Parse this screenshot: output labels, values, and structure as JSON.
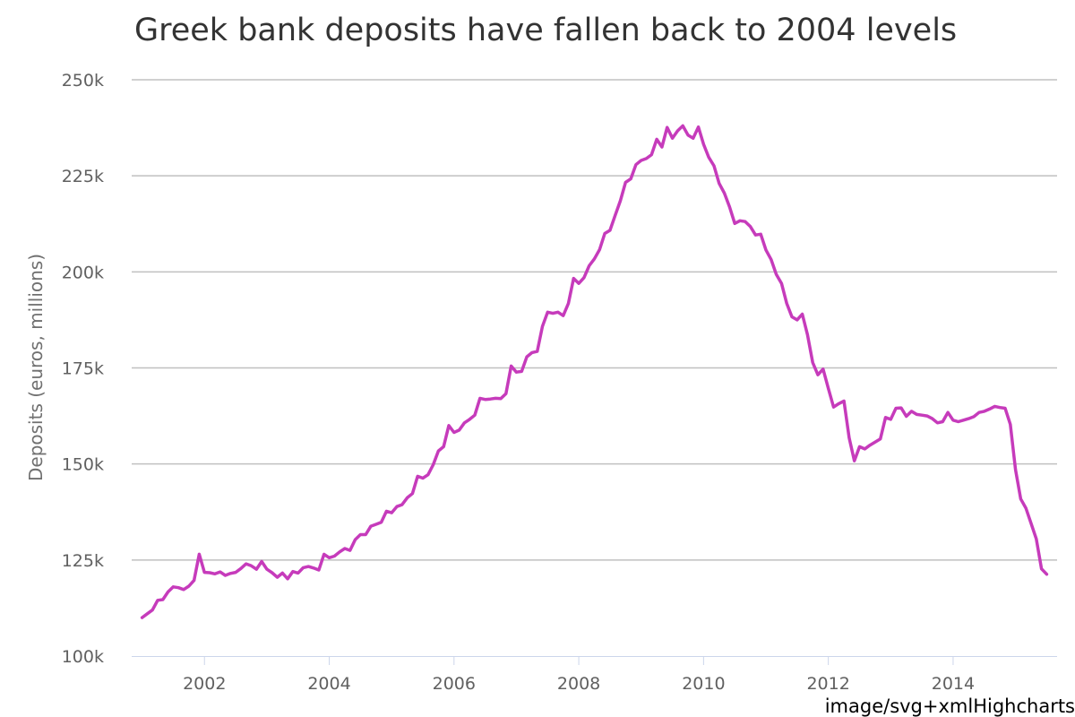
{
  "chart_data": {
    "type": "line",
    "title": "Greek bank deposits have fallen back to 2004 levels",
    "xlabel": "",
    "ylabel": "Deposits (euros, millions)",
    "x_ticks": [
      "2002",
      "2004",
      "2006",
      "2008",
      "2010",
      "2012",
      "2014"
    ],
    "y_ticks": [
      "100k",
      "125k",
      "150k",
      "175k",
      "200k",
      "225k",
      "250k"
    ],
    "ylim": [
      100000,
      250000
    ],
    "xlim": [
      "2000-11",
      "2015-09"
    ],
    "grid": true,
    "legend": "none",
    "series": [
      {
        "color": "#c63bbb",
        "x": [
          "2001-01",
          "2001-02",
          "2001-03",
          "2001-04",
          "2001-05",
          "2001-06",
          "2001-07",
          "2001-08",
          "2001-09",
          "2001-10",
          "2001-11",
          "2001-12",
          "2002-01",
          "2002-02",
          "2002-03",
          "2002-04",
          "2002-05",
          "2002-06",
          "2002-07",
          "2002-08",
          "2002-09",
          "2002-10",
          "2002-11",
          "2002-12",
          "2003-01",
          "2003-02",
          "2003-03",
          "2003-04",
          "2003-05",
          "2003-06",
          "2003-07",
          "2003-08",
          "2003-09",
          "2003-10",
          "2003-11",
          "2003-12",
          "2004-01",
          "2004-02",
          "2004-03",
          "2004-04",
          "2004-05",
          "2004-06",
          "2004-07",
          "2004-08",
          "2004-09",
          "2004-10",
          "2004-11",
          "2004-12",
          "2005-01",
          "2005-02",
          "2005-03",
          "2005-04",
          "2005-05",
          "2005-06",
          "2005-07",
          "2005-08",
          "2005-09",
          "2005-10",
          "2005-11",
          "2005-12",
          "2006-01",
          "2006-02",
          "2006-03",
          "2006-04",
          "2006-05",
          "2006-06",
          "2006-07",
          "2006-08",
          "2006-09",
          "2006-10",
          "2006-11",
          "2006-12",
          "2007-01",
          "2007-02",
          "2007-03",
          "2007-04",
          "2007-05",
          "2007-06",
          "2007-07",
          "2007-08",
          "2007-09",
          "2007-10",
          "2007-11",
          "2007-12",
          "2008-01",
          "2008-02",
          "2008-03",
          "2008-04",
          "2008-05",
          "2008-06",
          "2008-07",
          "2008-08",
          "2008-09",
          "2008-10",
          "2008-11",
          "2008-12",
          "2009-01",
          "2009-02",
          "2009-03",
          "2009-04",
          "2009-05",
          "2009-06",
          "2009-07",
          "2009-08",
          "2009-09",
          "2009-10",
          "2009-11",
          "2009-12",
          "2010-01",
          "2010-02",
          "2010-03",
          "2010-04",
          "2010-05",
          "2010-06",
          "2010-07",
          "2010-08",
          "2010-09",
          "2010-10",
          "2010-11",
          "2010-12",
          "2011-01",
          "2011-02",
          "2011-03",
          "2011-04",
          "2011-05",
          "2011-06",
          "2011-07",
          "2011-08",
          "2011-09",
          "2011-10",
          "2011-11",
          "2011-12",
          "2012-01",
          "2012-02",
          "2012-03",
          "2012-04",
          "2012-05",
          "2012-06",
          "2012-07",
          "2012-08",
          "2012-09",
          "2012-10",
          "2012-11",
          "2012-12",
          "2013-01",
          "2013-02",
          "2013-03",
          "2013-04",
          "2013-05",
          "2013-06",
          "2013-07",
          "2013-08",
          "2013-09",
          "2013-10",
          "2013-11",
          "2013-12",
          "2014-01",
          "2014-02",
          "2014-03",
          "2014-04",
          "2014-05",
          "2014-06",
          "2014-07",
          "2014-08",
          "2014-09",
          "2014-10",
          "2014-11",
          "2014-12",
          "2015-01",
          "2015-02",
          "2015-03",
          "2015-04",
          "2015-05",
          "2015-06",
          "2015-07"
        ],
        "values": [
          110000,
          111000,
          112000,
          114500,
          114700,
          116700,
          118000,
          117800,
          117300,
          118200,
          119700,
          126500,
          121800,
          121700,
          121400,
          121900,
          121000,
          121500,
          121800,
          122800,
          124000,
          123500,
          122600,
          124600,
          122600,
          121700,
          120500,
          121600,
          120100,
          122000,
          121600,
          123000,
          123300,
          122900,
          122400,
          126500,
          125600,
          126000,
          127100,
          128000,
          127500,
          130300,
          131600,
          131600,
          133800,
          134300,
          134800,
          137700,
          137300,
          138900,
          139400,
          141200,
          142300,
          146800,
          146300,
          147200,
          149800,
          153400,
          154500,
          160000,
          158200,
          158800,
          160700,
          161600,
          162700,
          167100,
          166800,
          166900,
          167100,
          167000,
          168300,
          175500,
          173900,
          174100,
          177900,
          179000,
          179300,
          185800,
          189500,
          189200,
          189500,
          188600,
          191800,
          198300,
          197000,
          198500,
          201600,
          203400,
          205800,
          210000,
          210800,
          214700,
          218500,
          223300,
          224200,
          227900,
          229000,
          229500,
          230500,
          234500,
          232500,
          237600,
          234800,
          236700,
          238000,
          235600,
          234800,
          237700,
          233200,
          229800,
          227600,
          223000,
          220500,
          216900,
          212600,
          213300,
          213100,
          211800,
          209600,
          209800,
          205700,
          203200,
          199300,
          197000,
          191800,
          188300,
          187500,
          189000,
          183600,
          176400,
          173200,
          174700,
          169600,
          164800,
          165700,
          166400,
          156800,
          150800,
          154500,
          153900,
          154900,
          155700,
          156500,
          162100,
          161600,
          164500,
          164600,
          162400,
          163700,
          162900,
          162700,
          162500,
          161800,
          160700,
          161000,
          163400,
          161400,
          161000,
          161400,
          161800,
          162300,
          163400,
          163700,
          164300,
          165000,
          164700,
          164500,
          160300,
          148500,
          140900,
          138500,
          134500,
          130500,
          122700,
          121300
        ]
      }
    ]
  },
  "credits": "image/svg+xmlHighcharts"
}
